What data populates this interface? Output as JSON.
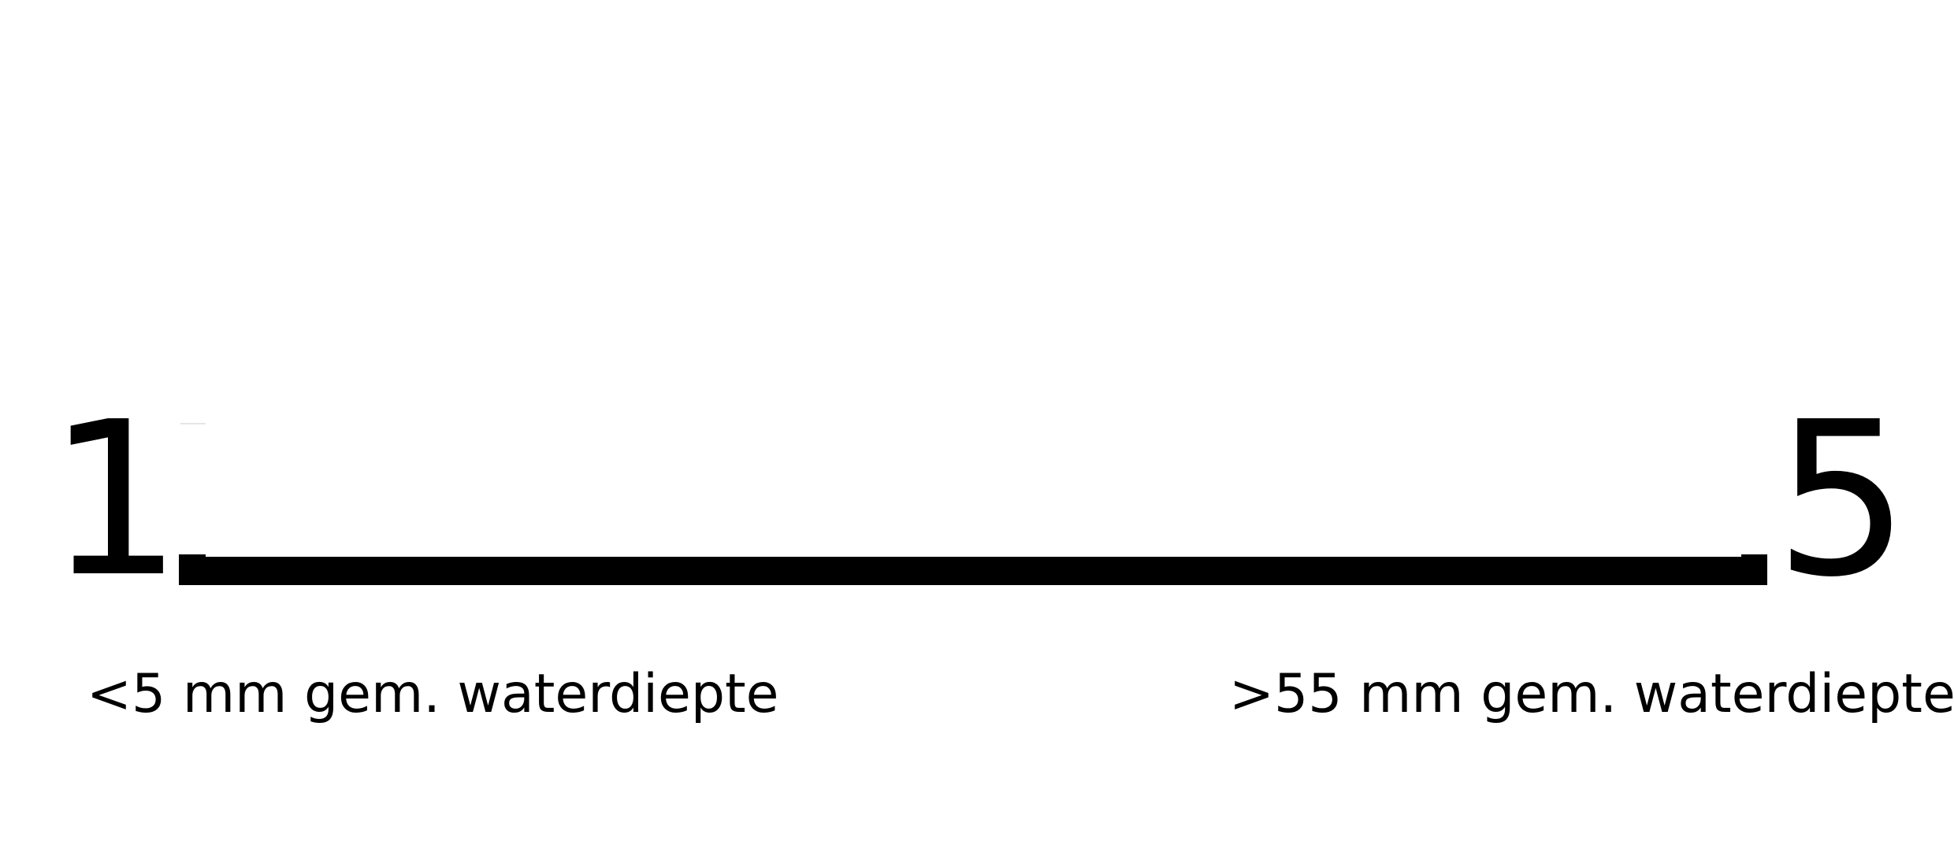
{
  "scale": {
    "min_label": "1",
    "max_label": "5",
    "min_caption": "<5 mm gem. waterdiepte",
    "max_caption": ">55 mm gem. waterdiepte"
  }
}
